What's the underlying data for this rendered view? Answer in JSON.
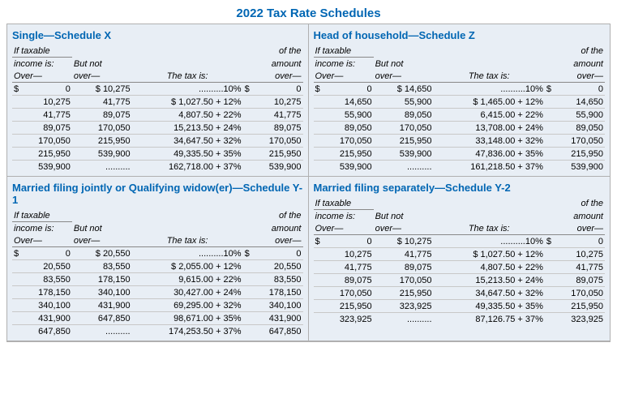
{
  "title": "2022 Tax Rate Schedules",
  "header": {
    "if_taxable": "If taxable",
    "income_is": "income is:",
    "but_not": "But not",
    "over": "Over—",
    "over2": "over—",
    "the_tax_is": "The tax is:",
    "of_the": "of the",
    "amount": "amount",
    "over3": "over—"
  },
  "schedules": [
    {
      "title": "Single—Schedule X",
      "rows": [
        {
          "o1": "0",
          "o2": "$ 10,275",
          "tax": "..........10%",
          "amt": "0",
          "c1": "$",
          "c2": "$",
          "bold": false
        },
        {
          "o1": "10,275",
          "o2": "41,775",
          "tax": "$   1,027.50 + 12%",
          "amt": "10,275",
          "bold": true
        },
        {
          "o1": "41,775",
          "o2": "89,075",
          "tax": "4,807.50 + 22%",
          "amt": "41,775",
          "bold": true
        },
        {
          "o1": "89,075",
          "o2": "170,050",
          "tax": "15,213.50 + 24%",
          "amt": "89,075",
          "bold": true
        },
        {
          "o1": "170,050",
          "o2": "215,950",
          "tax": "34,647.50 + 32%",
          "amt": "170,050",
          "bold": true
        },
        {
          "o1": "215,950",
          "o2": "539,900",
          "tax": "49,335.50 + 35%",
          "amt": "215,950",
          "bold": true
        },
        {
          "o1": "539,900",
          "o2": "..........",
          "tax": "162,718.00 + 37%",
          "amt": "539,900",
          "bold": true
        }
      ]
    },
    {
      "title": "Head of household—Schedule Z",
      "rows": [
        {
          "o1": "0",
          "o2": "$ 14,650",
          "tax": "..........10%",
          "amt": "0",
          "c1": "$",
          "c2": "$",
          "bold": false
        },
        {
          "o1": "14,650",
          "o2": "55,900",
          "tax": "$   1,465.00 + 12%",
          "amt": "14,650",
          "bold": true
        },
        {
          "o1": "55,900",
          "o2": "89,050",
          "tax": "6,415.00 + 22%",
          "amt": "55,900",
          "bold": true
        },
        {
          "o1": "89,050",
          "o2": "170,050",
          "tax": "13,708.00 + 24%",
          "amt": "89,050",
          "bold": true
        },
        {
          "o1": "170,050",
          "o2": "215,950",
          "tax": "33,148.00 + 32%",
          "amt": "170,050",
          "bold": true
        },
        {
          "o1": "215,950",
          "o2": "539,900",
          "tax": "47,836.00 + 35%",
          "amt": "215,950",
          "bold": true
        },
        {
          "o1": "539,900",
          "o2": "..........",
          "tax": "161,218.50 + 37%",
          "amt": "539,900",
          "bold": true
        }
      ]
    },
    {
      "title": "Married filing jointly or Qualifying widow(er)—Schedule Y-1",
      "rows": [
        {
          "o1": "0",
          "o2": "$ 20,550",
          "tax": "..........10%",
          "amt": "0",
          "c1": "$",
          "c2": "$",
          "bold": false
        },
        {
          "o1": "20,550",
          "o2": "83,550",
          "tax": "$   2,055.00 + 12%",
          "amt": "20,550",
          "bold": true
        },
        {
          "o1": "83,550",
          "o2": "178,150",
          "tax": "9,615.00 + 22%",
          "amt": "83,550",
          "bold": true
        },
        {
          "o1": "178,150",
          "o2": "340,100",
          "tax": "30,427.00 + 24%",
          "amt": "178,150",
          "bold": true
        },
        {
          "o1": "340,100",
          "o2": "431,900",
          "tax": "69,295.00 + 32%",
          "amt": "340,100",
          "bold": true
        },
        {
          "o1": "431,900",
          "o2": "647,850",
          "tax": "98,671.00 + 35%",
          "amt": "431,900",
          "bold": true
        },
        {
          "o1": "647,850",
          "o2": "..........",
          "tax": "174,253.50 + 37%",
          "amt": "647,850",
          "bold": true
        }
      ]
    },
    {
      "title": "Married filing separately—Schedule Y-2",
      "rows": [
        {
          "o1": "0",
          "o2": "$ 10,275",
          "tax": "..........10%",
          "amt": "0",
          "c1": "$",
          "c2": "$",
          "bold": false
        },
        {
          "o1": "10,275",
          "o2": "41,775",
          "tax": "$  1,027.50 + 12%",
          "amt": "10,275",
          "bold": true
        },
        {
          "o1": "41,775",
          "o2": "89,075",
          "tax": "4,807.50 + 22%",
          "amt": "41,775",
          "bold": true
        },
        {
          "o1": "89,075",
          "o2": "170,050",
          "tax": "15,213.50 + 24%",
          "amt": "89,075",
          "bold": true
        },
        {
          "o1": "170,050",
          "o2": "215,950",
          "tax": "34,647.50 + 32%",
          "amt": "170,050",
          "bold": true
        },
        {
          "o1": "215,950",
          "o2": "323,925",
          "tax": "49,335.50 + 35%",
          "amt": "215,950",
          "bold": true
        },
        {
          "o1": "323,925",
          "o2": "..........",
          "tax": "87,126.75 + 37%",
          "amt": "323,925",
          "bold": true
        }
      ]
    }
  ]
}
